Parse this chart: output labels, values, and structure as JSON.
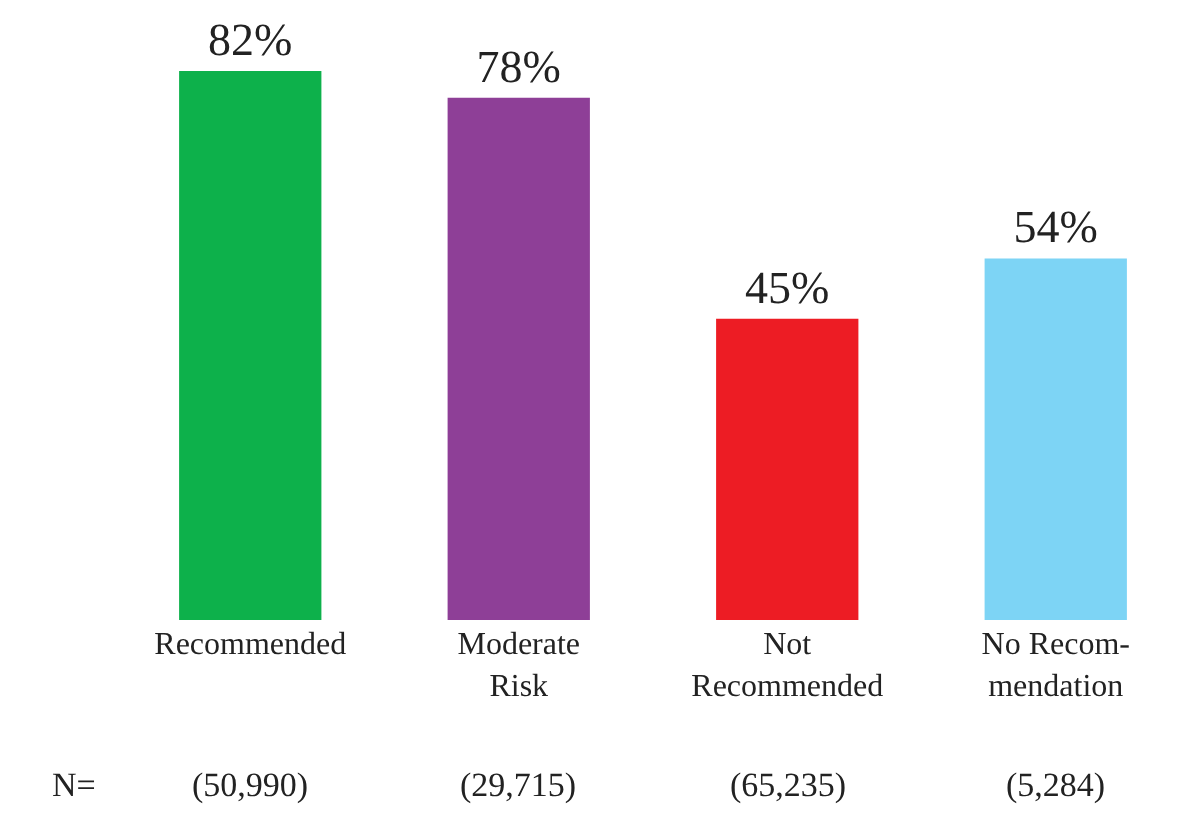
{
  "chart_data": {
    "type": "bar",
    "categories": [
      "Recommended",
      "Moderate\nRisk",
      "Not\nRecommended",
      "No Recom-\nmendation"
    ],
    "values": [
      82,
      78,
      45,
      54
    ],
    "colors": [
      "#0db14b",
      "#8e3f97",
      "#ed1c24",
      "#7dd4f5"
    ],
    "value_labels": [
      "82%",
      "78%",
      "45%",
      "54%"
    ],
    "annotations": [
      "N=",
      "(50,990)",
      "(29,715)",
      "(65,235)",
      "(5,284)"
    ],
    "legend": false
  }
}
